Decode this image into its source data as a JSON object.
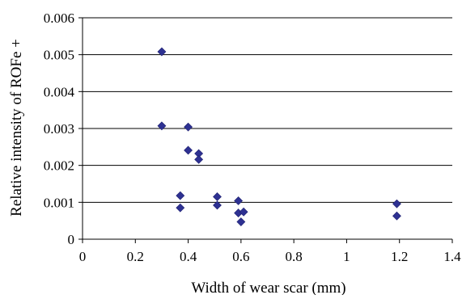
{
  "chart_data": {
    "type": "scatter",
    "title": "",
    "xlabel": "Width of wear scar (mm)",
    "ylabel": "Relative intensity of ROFe +",
    "xlim": [
      0,
      1.4
    ],
    "ylim": [
      0,
      0.006
    ],
    "x_ticks": [
      "0",
      "0.2",
      "0.4",
      "0.6",
      "0.8",
      "1",
      "1.2",
      "1.4"
    ],
    "y_ticks": [
      "0",
      "0.001",
      "0.002",
      "0.003",
      "0.004",
      "0.005",
      "0.006"
    ],
    "x_tick_values": [
      0,
      0.2,
      0.4,
      0.6,
      0.8,
      1.0,
      1.2,
      1.4
    ],
    "y_tick_values": [
      0,
      0.001,
      0.002,
      0.003,
      0.004,
      0.005,
      0.006
    ],
    "grid": "horizontal",
    "legend": "none",
    "marker": "diamond",
    "marker_color": "#2e3192",
    "series": [
      {
        "points": [
          {
            "x": 0.3,
            "y": 0.00508
          },
          {
            "x": 0.3,
            "y": 0.00307
          },
          {
            "x": 0.4,
            "y": 0.00304
          },
          {
            "x": 0.4,
            "y": 0.00241
          },
          {
            "x": 0.44,
            "y": 0.00232
          },
          {
            "x": 0.44,
            "y": 0.00216
          },
          {
            "x": 0.37,
            "y": 0.00118
          },
          {
            "x": 0.37,
            "y": 0.00085
          },
          {
            "x": 0.51,
            "y": 0.00115
          },
          {
            "x": 0.51,
            "y": 0.00092
          },
          {
            "x": 0.59,
            "y": 0.00104
          },
          {
            "x": 0.59,
            "y": 0.00071
          },
          {
            "x": 0.61,
            "y": 0.00074
          },
          {
            "x": 0.6,
            "y": 0.00047
          },
          {
            "x": 1.19,
            "y": 0.00096
          },
          {
            "x": 1.19,
            "y": 0.00063
          }
        ]
      }
    ]
  }
}
